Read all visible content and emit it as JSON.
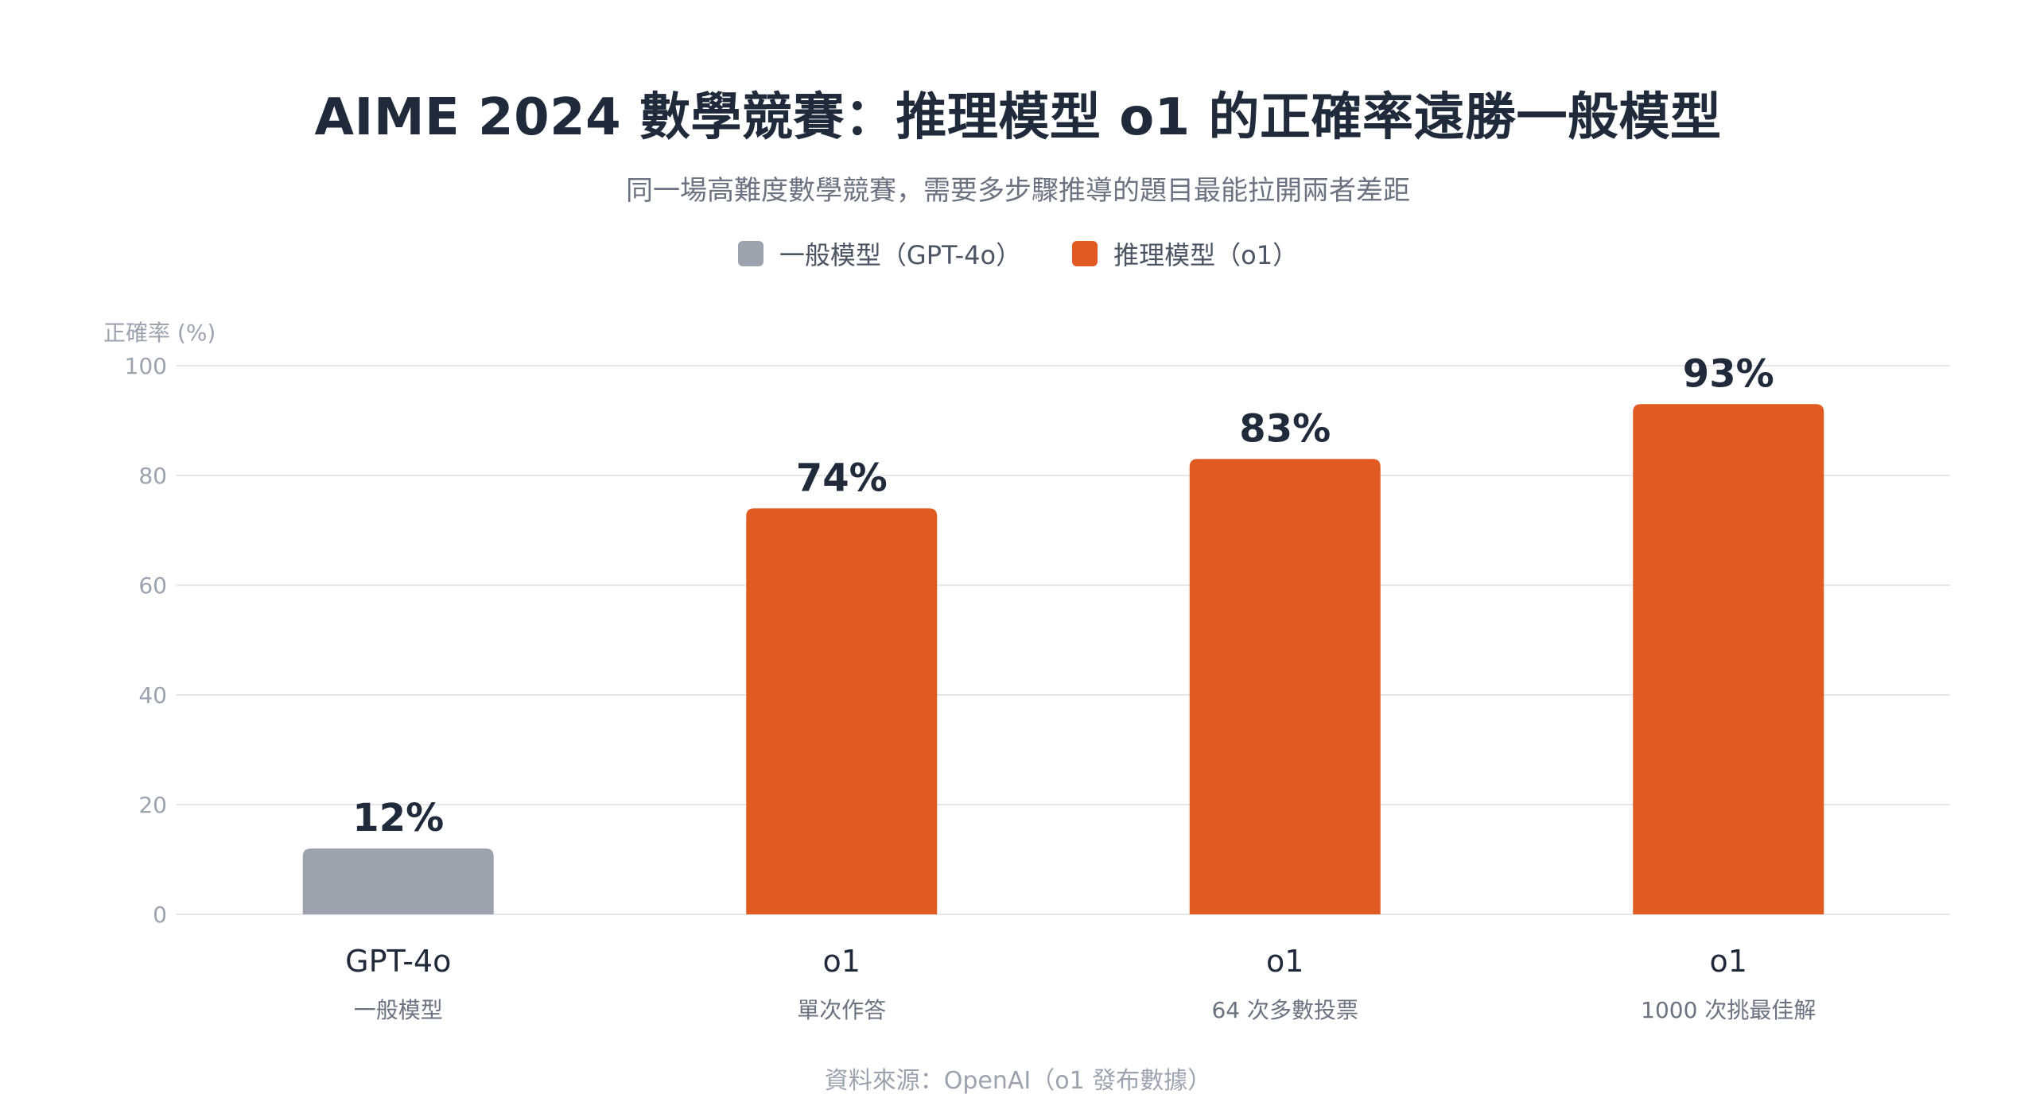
{
  "title": "AIME 2024 數學競賽：推理模型 o1 的正確率遠勝一般模型",
  "subtitle": "同一場高難度數學競賽，需要多步驟推導的題目最能拉開兩者差距",
  "source": "資料來源：OpenAI（o1 發布數據）",
  "colors": {
    "general": "#9ca3af",
    "reasoning": "#e05a21",
    "grid": "#e5e7eb",
    "text_dark": "#1f2a3a",
    "text_muted": "#6b7280"
  },
  "legend": [
    {
      "label": "一般模型（GPT-4o）",
      "color": "#9ca3af"
    },
    {
      "label": "推理模型（o1）",
      "color": "#e05a21"
    }
  ],
  "chart_data": {
    "type": "bar",
    "ylabel": "正確率 (%)",
    "ylim": [
      0,
      100
    ],
    "yticks": [
      0,
      20,
      40,
      60,
      80,
      100
    ],
    "grid": true,
    "legend_position": "top-center",
    "categories": [
      "GPT-4o",
      "o1",
      "o1",
      "o1"
    ],
    "subcategories": [
      "一般模型",
      "單次作答",
      "64 次多數投票",
      "1000 次挑最佳解"
    ],
    "values": [
      12,
      74,
      83,
      93
    ],
    "value_labels": [
      "12%",
      "74%",
      "83%",
      "93%"
    ],
    "bar_groups": [
      "general",
      "reasoning",
      "reasoning",
      "reasoning"
    ]
  }
}
